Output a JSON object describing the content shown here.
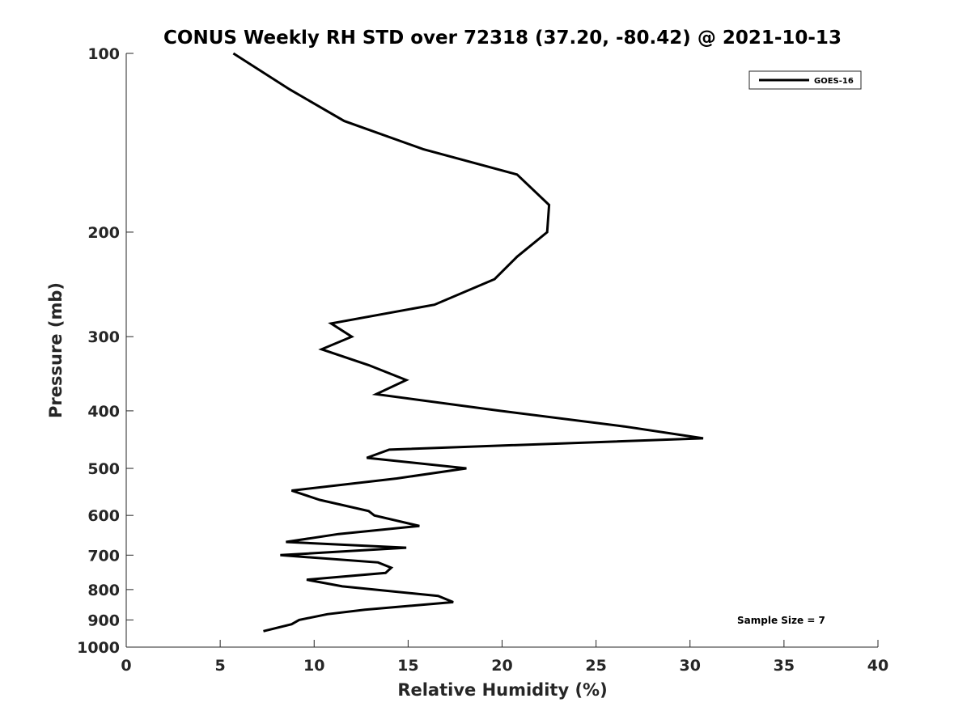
{
  "chart_data": {
    "type": "line",
    "title": "CONUS Weekly RH STD over 72318 (37.20, -80.42) @ 2021-10-13",
    "xlabel": "Relative Humidity (%)",
    "ylabel": "Pressure (mb)",
    "xlim": [
      0,
      40
    ],
    "ylim": [
      100,
      1000
    ],
    "y_scale": "log",
    "y_reversed": true,
    "x_ticks": [
      0,
      5,
      10,
      15,
      20,
      25,
      30,
      35,
      40
    ],
    "x_tick_labels": [
      "0",
      "5",
      "10",
      "15",
      "20",
      "25",
      "30",
      "35",
      "40"
    ],
    "y_ticks": [
      100,
      200,
      300,
      400,
      500,
      600,
      700,
      800,
      900,
      1000
    ],
    "y_tick_labels": [
      "100",
      "200",
      "300",
      "400",
      "500",
      "600",
      "700",
      "800",
      "900",
      "1000"
    ],
    "grid": false,
    "legend_position": "top-right",
    "annotation": "Sample Size = 7",
    "series": [
      {
        "name": "GOES-16",
        "color": "#000000",
        "x": [
          5.7,
          8.7,
          11.6,
          15.8,
          20.8,
          22.5,
          22.4,
          20.8,
          19.6,
          16.4,
          10.9,
          12.0,
          10.4,
          12.9,
          14.9,
          13.3,
          19.9,
          26.5,
          30.7,
          14.0,
          12.8,
          18.1,
          14.4,
          8.8,
          10.3,
          12.9,
          13.2,
          15.6,
          11.3,
          8.5,
          14.9,
          8.2,
          13.4,
          14.1,
          13.8,
          9.6,
          11.5,
          16.6,
          17.4,
          12.7,
          10.7,
          9.2,
          8.8,
          7.3
        ],
        "y": [
          100,
          115,
          130,
          145,
          160,
          180,
          200,
          220,
          240,
          265,
          285,
          300,
          315,
          335,
          355,
          375,
          400,
          425,
          445,
          465,
          480,
          500,
          520,
          545,
          565,
          590,
          600,
          625,
          645,
          665,
          680,
          700,
          720,
          735,
          750,
          770,
          790,
          820,
          840,
          865,
          880,
          900,
          915,
          940
        ]
      }
    ]
  }
}
